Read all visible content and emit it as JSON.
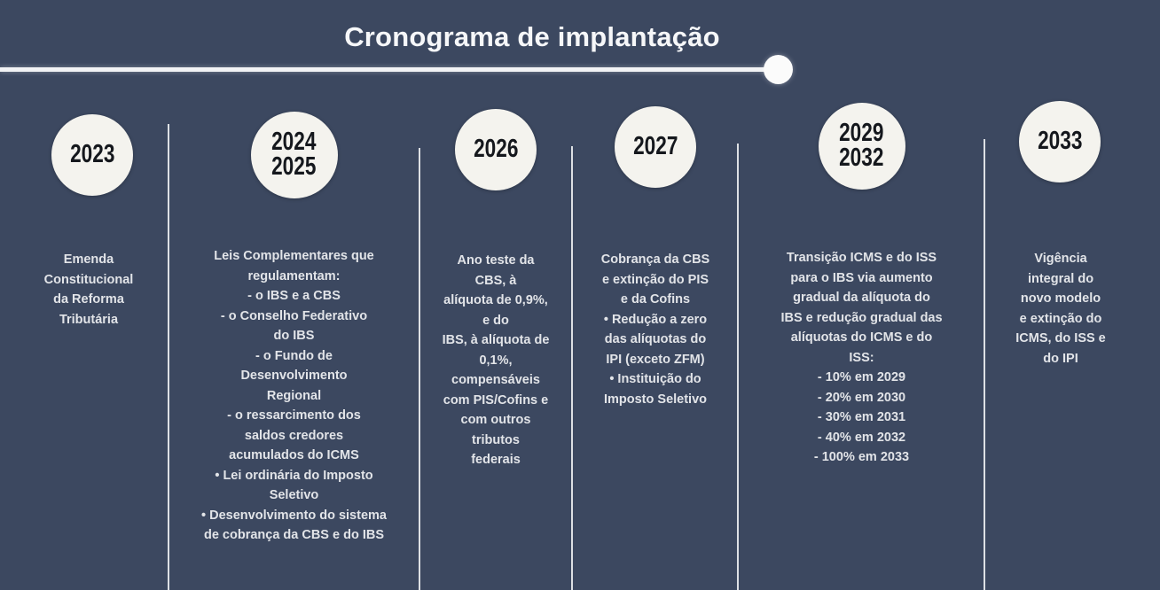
{
  "title": "Cronograma de implantação",
  "colors": {
    "background": "#3c4860",
    "circle_fill": "#f4f3ee",
    "year_text": "#15181d",
    "body_text": "#e2e4e8",
    "line": "#f2f3f5"
  },
  "timeline": {
    "columns": [
      {
        "years": [
          "2023"
        ],
        "lines": [
          "Emenda",
          "Constitucional",
          "da Reforma",
          "Tributária"
        ]
      },
      {
        "years": [
          "2024",
          "2025"
        ],
        "lines": [
          "Leis Complementares que",
          "regulamentam:",
          "- o IBS e a CBS",
          "- o Conselho Federativo",
          "do IBS",
          "- o Fundo de",
          "Desenvolvimento",
          "Regional",
          "- o ressarcimento dos",
          "saldos credores",
          "acumulados do ICMS",
          "• Lei ordinária do Imposto",
          "Seletivo",
          "• Desenvolvimento do sistema",
          "de cobrança da CBS e do IBS"
        ]
      },
      {
        "years": [
          "2026"
        ],
        "lines": [
          "Ano teste da",
          "CBS, à",
          "alíquota de 0,9%,",
          "e do",
          "IBS, à alíquota de",
          "0,1%,",
          "compensáveis",
          "com PIS/Cofins e",
          "com outros",
          "tributos",
          "federais"
        ]
      },
      {
        "years": [
          "2027"
        ],
        "lines": [
          "Cobrança da CBS",
          "e extinção do PIS",
          "e da Cofins",
          "• Redução a zero",
          "das alíquotas do",
          "IPI (exceto ZFM)",
          "• Instituição do",
          "Imposto Seletivo"
        ]
      },
      {
        "years": [
          "2029",
          "2032"
        ],
        "lines": [
          "Transição ICMS e do ISS",
          "para o IBS via aumento",
          "gradual da alíquota do",
          "IBS e redução gradual das",
          "alíquotas do ICMS e do",
          "ISS:",
          "- 10% em 2029",
          "- 20% em 2030",
          "- 30% em 2031",
          "- 40% em 2032",
          "- 100% em 2033"
        ]
      },
      {
        "years": [
          "2033"
        ],
        "lines": [
          "Vigência",
          "integral do",
          "novo modelo",
          "e extinção do",
          "ICMS, do ISS e",
          "do IPI"
        ]
      }
    ]
  }
}
